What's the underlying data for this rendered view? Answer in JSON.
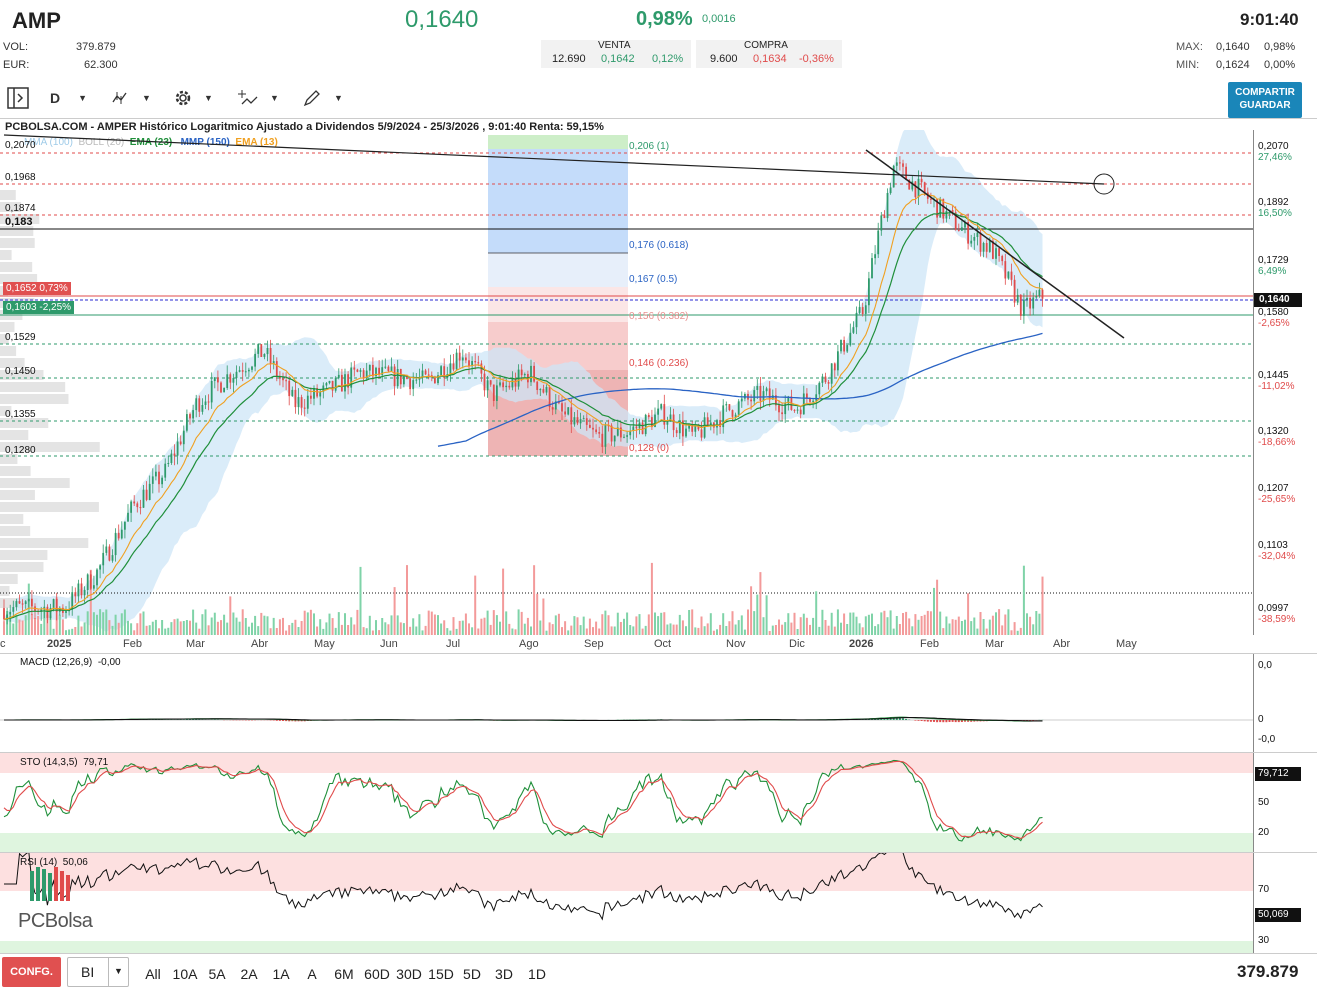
{
  "header": {
    "ticker": "AMP",
    "price": "0,1640",
    "change_pct": "0,98%",
    "change_abs": "0,0016",
    "time": "9:01:40",
    "vol_label": "VOL:",
    "vol_value": "379.879",
    "eur_label": "EUR:",
    "eur_value": "62.300",
    "venta_label": "VENTA",
    "venta_qty": "12.690",
    "venta_price": "0,1642",
    "venta_pct": "0,12%",
    "compra_label": "COMPRA",
    "compra_qty": "9.600",
    "compra_price": "0,1634",
    "compra_pct": "-0,36%",
    "max_label": "MAX:",
    "max_value": "0,1640",
    "max_pct": "0,98%",
    "min_label": "MIN:",
    "min_value": "0,1624",
    "min_pct": "0,00%"
  },
  "toolbar": {
    "period": "D",
    "share_line1": "COMPARTIR",
    "share_line2": "GUARDAR"
  },
  "chart_info": "PCBOLSA.COM - AMPER Histórico Logaritmico Ajustado a Dividendos 5/9/2024 - 25/3/2026 , 9:01:40 Renta: 59,15%",
  "legend": {
    "mma": "MMA (100)",
    "boll": "BOLL (20)",
    "ema23": "EMA (23)",
    "mmp": "MMP (150)",
    "ema13": "EMA (13)"
  },
  "colors": {
    "up": "#2e9a6b",
    "down": "#e04b4b",
    "ema23": "#1f8f3a",
    "ema13": "#f0a020",
    "mmp": "#2a63c4",
    "boll": "#cde6f7"
  },
  "left_levels": [
    "0,2070",
    "0,1968",
    "0,1874",
    "0,183",
    "0,1529",
    "0,1450",
    "0,1355",
    "0,1280"
  ],
  "tags": {
    "red_tag": "0,1652  0,73%",
    "green_tag": "0,1603  -2,25%"
  },
  "fib": {
    "f1": "0,206 (1)",
    "f618": "0,176 (0.618)",
    "f05": "0,167 (0.5)",
    "f382": "0,156 (0.382)",
    "f236": "0,146 (0.236)",
    "f0": "0,128 (0)"
  },
  "right_axis": [
    {
      "v": "0,2070",
      "p": "27,46%",
      "c": "green"
    },
    {
      "v": "0,1892",
      "p": "16,50%",
      "c": "green"
    },
    {
      "v": "0,1729",
      "p": "6,49%",
      "c": "green"
    },
    {
      "v": "0,1580",
      "p": "-2,65%",
      "c": "red"
    },
    {
      "v": "0,1445",
      "p": "-11,02%",
      "c": "red"
    },
    {
      "v": "0,1320",
      "p": "-18,66%",
      "c": "red"
    },
    {
      "v": "0,1207",
      "p": "-25,65%",
      "c": "red"
    },
    {
      "v": "0,1103",
      "p": "-32,04%",
      "c": "red"
    },
    {
      "v": "0,0997",
      "p": "-38,59%",
      "c": "red"
    }
  ],
  "price_tag": "0,1640",
  "months": [
    "c",
    "2025",
    "Feb",
    "Mar",
    "Abr",
    "May",
    "Jun",
    "Jul",
    "Ago",
    "Sep",
    "Oct",
    "Nov",
    "Dic",
    "2026",
    "Feb",
    "Mar",
    "Abr",
    "May"
  ],
  "macd": {
    "title": "MACD (12,26,9)",
    "value": "-0,00",
    "ax_top": "0,0",
    "ax_mid": "0",
    "ax_bot": "-0,0"
  },
  "sto": {
    "title": "STO (14,3,5)",
    "value": "79,71",
    "tag": "79,712",
    "l50": "50",
    "l20": "20"
  },
  "rsi": {
    "title": "RSI (14)",
    "value": "50,06",
    "tag": "50,069",
    "l70": "70",
    "l30": "30"
  },
  "logo": "PCBolsa",
  "bottom": {
    "conf": "CONFG.",
    "select": "BI",
    "ranges": [
      "All",
      "10A",
      "5A",
      "2A",
      "1A",
      "A",
      "6M",
      "60D",
      "30D",
      "15D",
      "5D",
      "3D",
      "1D"
    ],
    "volume": "379.879"
  },
  "chart_data": {
    "type": "line",
    "title": "PCBOLSA.COM - AMPER Histórico Logaritmico Ajustado a Dividendos 5/9/2024 - 25/3/2026 , 9:01:40 Renta: 59,15%",
    "x": [
      "2024-12-31",
      "2025-01-15",
      "2025-02-01",
      "2025-02-15",
      "2025-03-01",
      "2025-03-15",
      "2025-04-01",
      "2025-04-15",
      "2025-05-01",
      "2025-05-15",
      "2025-06-01",
      "2025-06-15",
      "2025-07-01",
      "2025-07-15",
      "2025-08-01",
      "2025-08-15",
      "2025-09-01",
      "2025-09-15",
      "2025-10-01",
      "2025-10-15",
      "2025-11-01",
      "2025-11-15",
      "2025-12-01",
      "2025-12-15",
      "2026-01-01",
      "2026-01-15",
      "2026-02-01",
      "2026-02-15",
      "2026-03-01",
      "2026-03-15",
      "2026-03-25"
    ],
    "series": [
      {
        "name": "Close",
        "values": [
          0.1,
          0.106,
          0.118,
          0.124,
          0.138,
          0.144,
          0.15,
          0.138,
          0.141,
          0.145,
          0.144,
          0.143,
          0.15,
          0.14,
          0.145,
          0.136,
          0.131,
          0.132,
          0.136,
          0.131,
          0.137,
          0.14,
          0.137,
          0.144,
          0.16,
          0.201,
          0.19,
          0.182,
          0.176,
          0.16,
          0.164
        ]
      }
    ],
    "ylim": [
      0.0997,
      0.207
    ],
    "yscale": "log",
    "grid": true
  }
}
